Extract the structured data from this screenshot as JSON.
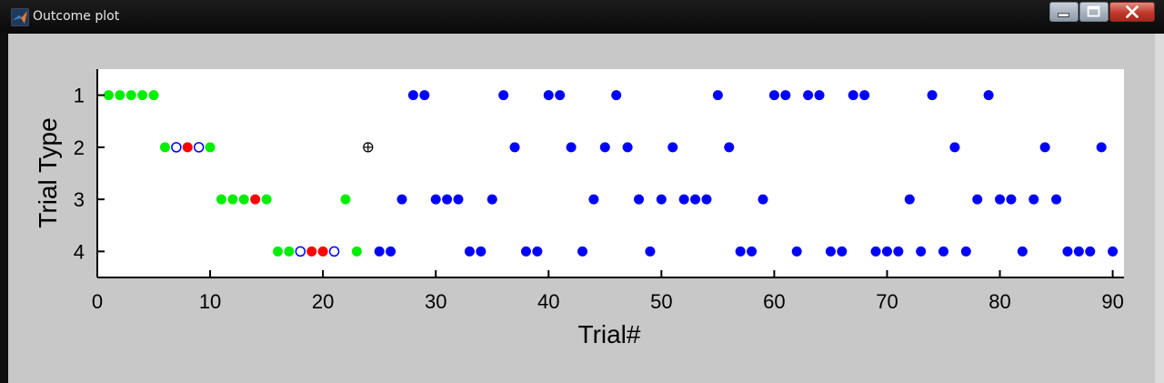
{
  "window": {
    "title": "Outcome plot",
    "colors": {
      "titlebar": "#0a0a0a",
      "figure_bg": "#c8c8c8",
      "axes_bg": "#ffffff"
    },
    "buttons": {
      "minimize": "minimize-icon",
      "maximize": "maximize-icon",
      "close": "close-icon"
    }
  },
  "chart_data": {
    "type": "scatter",
    "title": "",
    "xlabel": "Trial#",
    "ylabel": "Trial Type",
    "xlim": [
      0,
      91
    ],
    "ylim": [
      0.5,
      4.5
    ],
    "y_reversed": true,
    "xticks": [
      0,
      10,
      20,
      30,
      40,
      50,
      60,
      70,
      80,
      90
    ],
    "yticks": [
      1,
      2,
      3,
      4
    ],
    "grid": false,
    "legend": "none",
    "series": [
      {
        "color": "#00ee00",
        "marker": "filled-circle",
        "points": [
          [
            1,
            1
          ],
          [
            2,
            1
          ],
          [
            3,
            1
          ],
          [
            4,
            1
          ],
          [
            5,
            1
          ],
          [
            6,
            2
          ],
          [
            10,
            2
          ],
          [
            11,
            3
          ],
          [
            12,
            3
          ],
          [
            13,
            3
          ],
          [
            15,
            3
          ],
          [
            16,
            4
          ],
          [
            17,
            4
          ],
          [
            22,
            3
          ],
          [
            23,
            4
          ]
        ]
      },
      {
        "color": "#ff0000",
        "marker": "filled-circle",
        "points": [
          [
            8,
            2
          ],
          [
            14,
            3
          ],
          [
            19,
            4
          ],
          [
            20,
            4
          ]
        ]
      },
      {
        "color": "#0000ff",
        "marker": "open-circle",
        "points": [
          [
            7,
            2
          ],
          [
            9,
            2
          ],
          [
            18,
            4
          ],
          [
            21,
            4
          ]
        ]
      },
      {
        "color": "#000000",
        "marker": "circle-plus",
        "points": [
          [
            24,
            2
          ]
        ]
      },
      {
        "color": "#0000ff",
        "marker": "filled-circle",
        "points": [
          [
            25,
            4
          ],
          [
            26,
            4
          ],
          [
            27,
            3
          ],
          [
            28,
            1
          ],
          [
            29,
            1
          ],
          [
            30,
            3
          ],
          [
            31,
            3
          ],
          [
            32,
            3
          ],
          [
            33,
            4
          ],
          [
            34,
            4
          ],
          [
            35,
            3
          ],
          [
            36,
            1
          ],
          [
            37,
            2
          ],
          [
            38,
            4
          ],
          [
            39,
            4
          ],
          [
            40,
            1
          ],
          [
            41,
            1
          ],
          [
            42,
            2
          ],
          [
            43,
            4
          ],
          [
            44,
            3
          ],
          [
            45,
            2
          ],
          [
            46,
            1
          ],
          [
            47,
            2
          ],
          [
            48,
            3
          ],
          [
            49,
            4
          ],
          [
            50,
            3
          ],
          [
            51,
            2
          ],
          [
            52,
            3
          ],
          [
            53,
            3
          ],
          [
            54,
            3
          ],
          [
            55,
            1
          ],
          [
            56,
            2
          ],
          [
            57,
            4
          ],
          [
            58,
            4
          ],
          [
            59,
            3
          ],
          [
            60,
            1
          ],
          [
            61,
            1
          ],
          [
            62,
            4
          ],
          [
            63,
            1
          ],
          [
            64,
            1
          ],
          [
            65,
            4
          ],
          [
            66,
            4
          ],
          [
            67,
            1
          ],
          [
            68,
            1
          ],
          [
            69,
            4
          ],
          [
            70,
            4
          ],
          [
            71,
            4
          ],
          [
            72,
            3
          ],
          [
            73,
            4
          ],
          [
            74,
            1
          ],
          [
            75,
            4
          ],
          [
            76,
            2
          ],
          [
            77,
            4
          ],
          [
            78,
            3
          ],
          [
            79,
            1
          ],
          [
            80,
            3
          ],
          [
            81,
            3
          ],
          [
            82,
            4
          ],
          [
            83,
            3
          ],
          [
            84,
            2
          ],
          [
            85,
            3
          ],
          [
            86,
            4
          ],
          [
            87,
            4
          ],
          [
            88,
            4
          ],
          [
            89,
            2
          ],
          [
            90,
            4
          ]
        ]
      }
    ]
  }
}
